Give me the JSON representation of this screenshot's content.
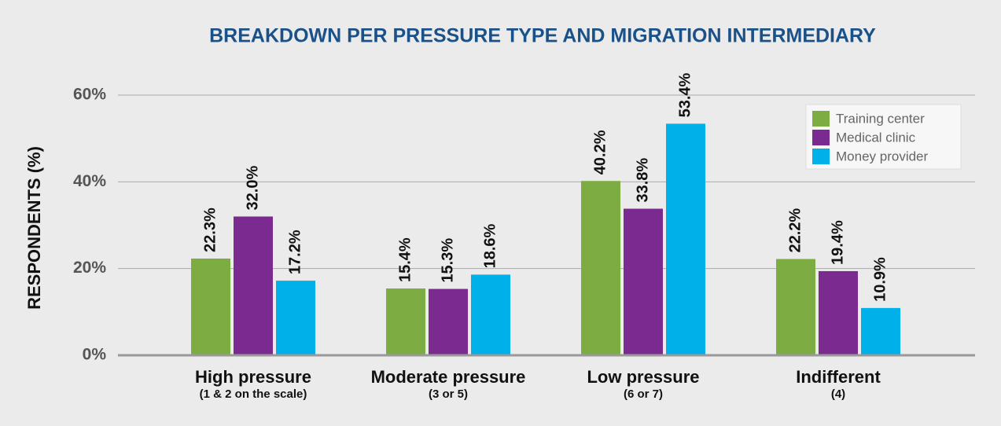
{
  "chart_data": {
    "type": "bar",
    "title": "BREAKDOWN PER PRESSURE TYPE AND MIGRATION INTERMEDIARY",
    "ylabel": "RESPONDENTS (%)",
    "categories": [
      "High pressure",
      "Moderate pressure",
      "Low pressure",
      "Indifferent"
    ],
    "category_subtitles": [
      "(1 & 2 on the scale)",
      "(3 or 5)",
      "(6 or 7)",
      "(4)"
    ],
    "series": [
      {
        "name": "Training center",
        "color": "#7cac42",
        "values": [
          22.3,
          15.4,
          40.2,
          22.2
        ],
        "value_labels": [
          "22.3%",
          "15.4%",
          "40.2%",
          "22.2%"
        ]
      },
      {
        "name": "Medical clinic",
        "color": "#7b2a8f",
        "values": [
          32.0,
          15.3,
          33.8,
          19.4
        ],
        "value_labels": [
          "32.0%",
          "15.3%",
          "33.8%",
          "19.4%"
        ]
      },
      {
        "name": "Money provider",
        "color": "#00b0e8",
        "values": [
          17.2,
          18.6,
          53.4,
          10.9
        ],
        "value_labels": [
          "17.2%",
          "18.6%",
          "53.4%",
          "10.9%"
        ]
      }
    ],
    "ylim": [
      0,
      60
    ],
    "yticks": [
      {
        "value": 0,
        "label": "0%"
      },
      {
        "value": 20,
        "label": "20%"
      },
      {
        "value": 40,
        "label": "40%"
      },
      {
        "value": 60,
        "label": "60%"
      }
    ],
    "grid": true,
    "legend": "top-right"
  }
}
